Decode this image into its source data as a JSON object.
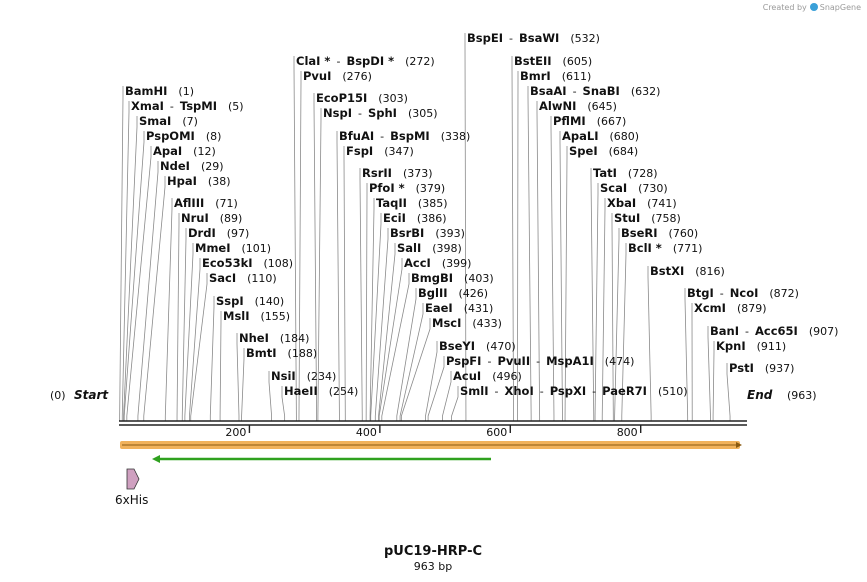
{
  "credit": {
    "prefix": "Created by",
    "brand": "SnapGene"
  },
  "map": {
    "title": "pUC19-HRP-C",
    "length_label": "963 bp",
    "start_label": "Start",
    "start_pos": "(0)",
    "end_label": "End",
    "end_pos": "(963)",
    "axis_ticks": [
      200,
      400,
      600,
      800
    ],
    "feature_label": "6xHis",
    "colors": {
      "orange_bar": "#f1b25b",
      "green_arrow": "#2fa11f",
      "feature_fill": "#cfa0c0"
    }
  },
  "sites": [
    {
      "names": [
        "BspEI",
        "BsaWI"
      ],
      "pos": [
        532
      ]
    },
    {
      "names": [
        "ClaI *",
        "BspDI *"
      ],
      "pos": [
        272
      ]
    },
    {
      "names": [
        "BstEII"
      ],
      "pos": [
        605
      ]
    },
    {
      "names": [
        "PvuI"
      ],
      "pos": [
        276
      ]
    },
    {
      "names": [
        "BmrI"
      ],
      "pos": [
        611
      ]
    },
    {
      "names": [
        "BamHI"
      ],
      "pos": [
        1
      ]
    },
    {
      "names": [
        "BsaAI",
        "SnaBI"
      ],
      "pos": [
        632
      ]
    },
    {
      "names": [
        "EcoP15I"
      ],
      "pos": [
        303
      ]
    },
    {
      "names": [
        "XmaI",
        "TspMI"
      ],
      "pos": [
        5
      ]
    },
    {
      "names": [
        "AlwNI"
      ],
      "pos": [
        645
      ]
    },
    {
      "names": [
        "NspI",
        "SphI"
      ],
      "pos": [
        305
      ]
    },
    {
      "names": [
        "SmaI"
      ],
      "pos": [
        7
      ]
    },
    {
      "names": [
        "PflMI"
      ],
      "pos": [
        667
      ]
    },
    {
      "names": [
        "PspOMI"
      ],
      "pos": [
        8
      ]
    },
    {
      "names": [
        "BfuAI",
        "BspMI"
      ],
      "pos": [
        338
      ]
    },
    {
      "names": [
        "ApaLI"
      ],
      "pos": [
        680
      ]
    },
    {
      "names": [
        "ApaI"
      ],
      "pos": [
        12
      ]
    },
    {
      "names": [
        "FspI"
      ],
      "pos": [
        347
      ]
    },
    {
      "names": [
        "SpeI"
      ],
      "pos": [
        684
      ]
    },
    {
      "names": [
        "NdeI"
      ],
      "pos": [
        29
      ]
    },
    {
      "names": [
        "HpaI"
      ],
      "pos": [
        38
      ]
    },
    {
      "names": [
        "RsrII"
      ],
      "pos": [
        373
      ]
    },
    {
      "names": [
        "TatI"
      ],
      "pos": [
        728
      ]
    },
    {
      "names": [
        "PfoI *"
      ],
      "pos": [
        379
      ]
    },
    {
      "names": [
        "ScaI"
      ],
      "pos": [
        730
      ]
    },
    {
      "names": [
        "AflIII"
      ],
      "pos": [
        71
      ]
    },
    {
      "names": [
        "TaqII"
      ],
      "pos": [
        385
      ]
    },
    {
      "names": [
        "XbaI"
      ],
      "pos": [
        741
      ]
    },
    {
      "names": [
        "NruI"
      ],
      "pos": [
        89
      ]
    },
    {
      "names": [
        "EciI"
      ],
      "pos": [
        386
      ]
    },
    {
      "names": [
        "StuI"
      ],
      "pos": [
        758
      ]
    },
    {
      "names": [
        "DrdI"
      ],
      "pos": [
        97
      ]
    },
    {
      "names": [
        "BsrBI"
      ],
      "pos": [
        393
      ]
    },
    {
      "names": [
        "BseRI"
      ],
      "pos": [
        760
      ]
    },
    {
      "names": [
        "MmeI"
      ],
      "pos": [
        101
      ]
    },
    {
      "names": [
        "SalI"
      ],
      "pos": [
        398
      ]
    },
    {
      "names": [
        "BclI *"
      ],
      "pos": [
        771
      ]
    },
    {
      "names": [
        "Eco53kI"
      ],
      "pos": [
        108
      ]
    },
    {
      "names": [
        "AccI"
      ],
      "pos": [
        399
      ]
    },
    {
      "names": [
        "SacI"
      ],
      "pos": [
        110
      ]
    },
    {
      "names": [
        "BmgBI"
      ],
      "pos": [
        403
      ]
    },
    {
      "names": [
        "BstXI"
      ],
      "pos": [
        816
      ]
    },
    {
      "names": [
        "SspI"
      ],
      "pos": [
        140
      ]
    },
    {
      "names": [
        "BglII"
      ],
      "pos": [
        426
      ]
    },
    {
      "names": [
        "BtgI",
        "NcoI"
      ],
      "pos": [
        872
      ]
    },
    {
      "names": [
        "MslI"
      ],
      "pos": [
        155
      ]
    },
    {
      "names": [
        "EaeI"
      ],
      "pos": [
        431
      ]
    },
    {
      "names": [
        "XcmI"
      ],
      "pos": [
        879
      ]
    },
    {
      "names": [
        "MscI"
      ],
      "pos": [
        433
      ]
    },
    {
      "names": [
        "NheI"
      ],
      "pos": [
        184
      ]
    },
    {
      "names": [
        "BanI",
        "Acc65I"
      ],
      "pos": [
        907
      ]
    },
    {
      "names": [
        "BmtI"
      ],
      "pos": [
        188
      ]
    },
    {
      "names": [
        "BseYI"
      ],
      "pos": [
        470
      ]
    },
    {
      "names": [
        "KpnI"
      ],
      "pos": [
        911
      ]
    },
    {
      "names": [
        "PspFI",
        "PvuII",
        "MspA1I"
      ],
      "pos": [
        474
      ]
    },
    {
      "names": [
        "PstI"
      ],
      "pos": [
        937
      ]
    },
    {
      "names": [
        "NsiI"
      ],
      "pos": [
        234
      ]
    },
    {
      "names": [
        "AcuI"
      ],
      "pos": [
        496
      ]
    },
    {
      "names": [
        "HaeII"
      ],
      "pos": [
        254
      ]
    },
    {
      "names": [
        "SmlI",
        "XhoI",
        "PspXI",
        "PaeR7I"
      ],
      "pos": [
        510
      ]
    }
  ]
}
